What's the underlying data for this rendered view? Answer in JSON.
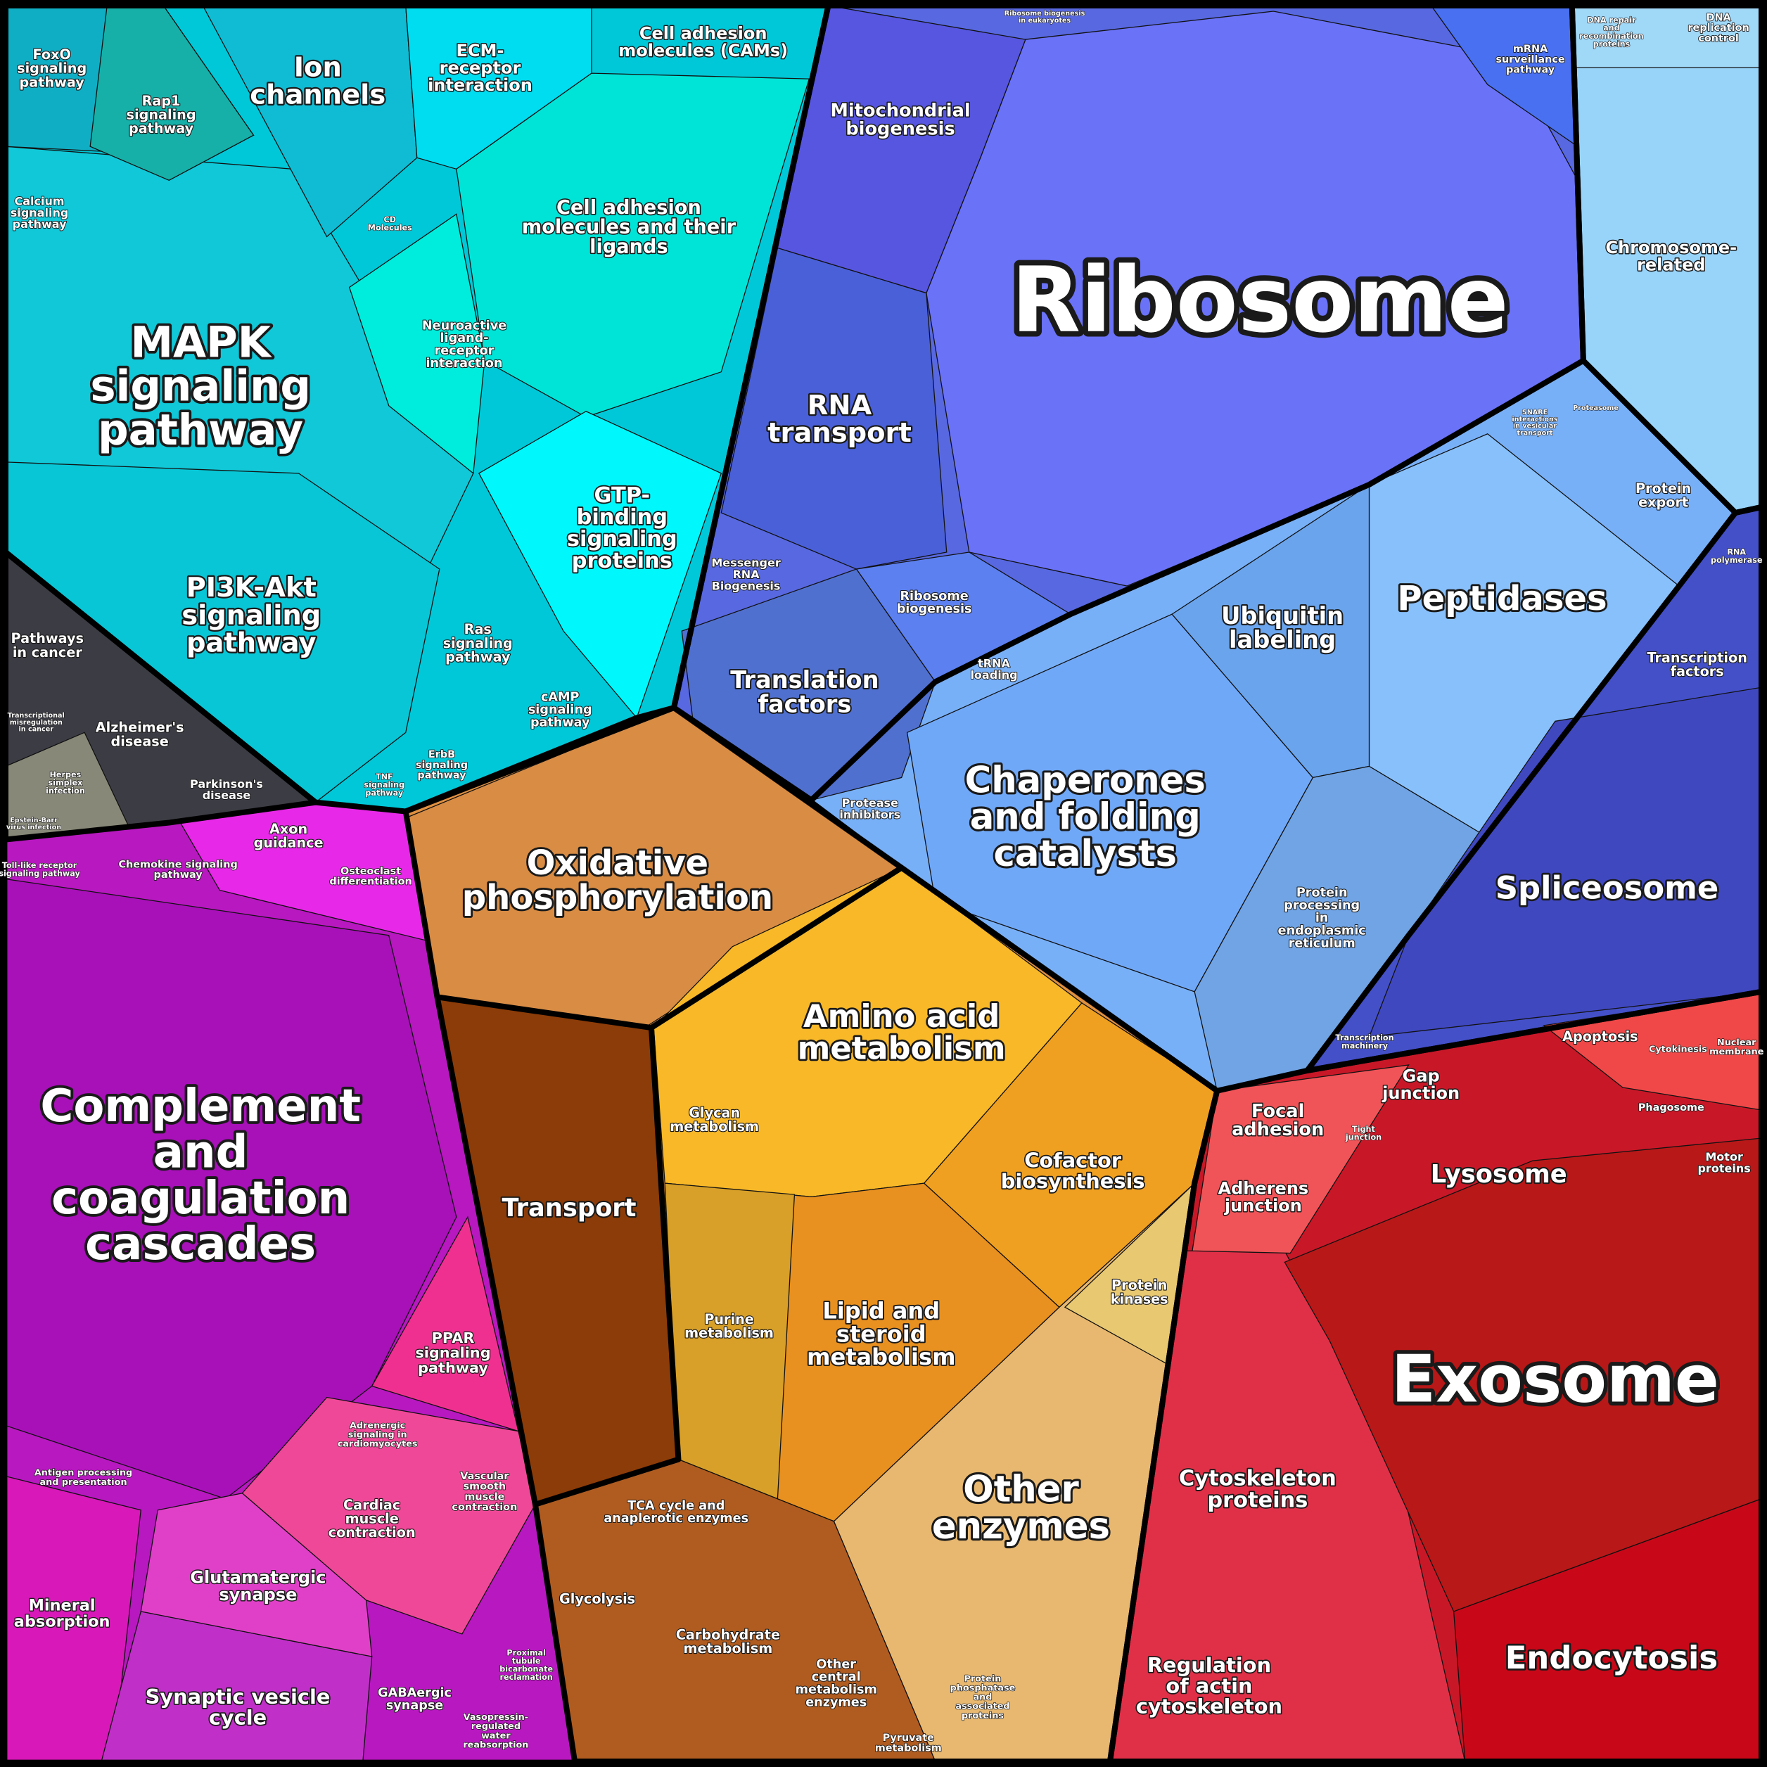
{
  "labels": [
    "Ribosome",
    "Exosome",
    "MAPK\nsignaling\npathway",
    "Complement\nand\ncoagulation\ncascades",
    "Chaperones\nand folding\ncatalysts",
    "Oxidative\nphosphorylation",
    "Peptidases",
    "Spliceosome",
    "Amino acid\nmetabolism",
    "Other\nenzymes",
    "Endocytosis",
    "RNA\ntransport",
    "PI3K-Akt\nsignaling\npathway",
    "Ion\nchannels",
    "Translation\nfactors",
    "Ubiquitin\nlabeling",
    "Transport",
    "Lysosome",
    "Lipid and\nsteroid\nmetabolism",
    "Cell adhesion\nmolecules and their\nligands",
    "GTP-\nbinding\nsignaling\nproteins",
    "Cytoskeleton\nproteins",
    "Regulation\nof actin\ncytoskeleton",
    "Cofactor\nbiosynthesis",
    "Mitochondrial\nbiogenesis",
    "Synaptic vesicle\ncycle",
    "Glutamatergic\nsynapse",
    "Focal\nadhesion",
    "Adherens\njunction",
    "Gap\njunction",
    "ECM-\nreceptor\ninteraction",
    "Cell adhesion\nmolecules (CAMs)",
    "Mineral\nabsorption",
    "Axon\nguidance",
    "PPAR\nsignaling\npathway",
    "Cardiac\nmuscle\ncontraction",
    "Glycan\nmetabolism",
    "Purine\nmetabolism",
    "Carbohydrate\nmetabolism",
    "TCA cycle and\nanaplerotic enzymes",
    "Glycolysis",
    "Other\ncentral\nmetabolism\nenzymes",
    "Pyruvate\nmetabolism",
    "Protein\nphosphatase\nand\nassociated\nproteins",
    "Protein\nkinases",
    "Chromosome-\nrelated",
    "Protein\nexport",
    "Transcription\nfactors",
    "Apoptosis",
    "Cytokinesis",
    "Nuclear\nmembrane",
    "Phagosome",
    "Motor\nproteins",
    "Tight\njunction",
    "Transcription\nmachinery",
    "Protease\ninhibitors",
    "Protein\nprocessing\nin\nendoplasmic\nreticulum",
    "tRNA\nloading",
    "Ribosome\nbiogenesis",
    "Messenger\nRNA\nBiogenesis",
    "mRNA\nsurveillance\npathway",
    "DNA repair\nand\nrecombination\nproteins",
    "DNA\nreplication\ncontrol",
    "FoxO\nsignaling\npathway",
    "Rap1\nsignaling\npathway",
    "Calcium\nsignaling\npathway",
    "Neuroactive\nligand-\nreceptor\ninteraction",
    "CD\nMolecules",
    "Ras\nsignaling\npathway",
    "cAMP\nsignaling\npathway",
    "ErbB\nsignaling\npathway",
    "TNF\nsignaling\npathway",
    "Pathways\nin cancer",
    "Alzheimer's\ndisease",
    "Parkinson's\ndisease",
    "Herpes\nsimplex\ninfection",
    "Epstein-Barr\nvirus infection",
    "Transcriptional\nmisregulation\nin cancer",
    "Chemokine signaling\npathway",
    "Toll-like receptor\nsignaling pathway",
    "Osteoclast\ndifferentiation",
    "Antigen processing\nand presentation",
    "Adrenergic\nsignaling in\ncardiomyocytes",
    "Vascular\nsmooth\nmuscle\ncontraction",
    "GABAergic\nsynapse",
    "Proximal\ntubule\nbicarbonate\nreclamation",
    "Vasopressin-\nregulated\nwater\nreabsorption",
    "Ribosome biogenesis\nin eukaryotes",
    "SNARE\ninteractions\nin vesicular\ntransport",
    "Proteasome",
    "RNA\npolymerase"
  ]
}
